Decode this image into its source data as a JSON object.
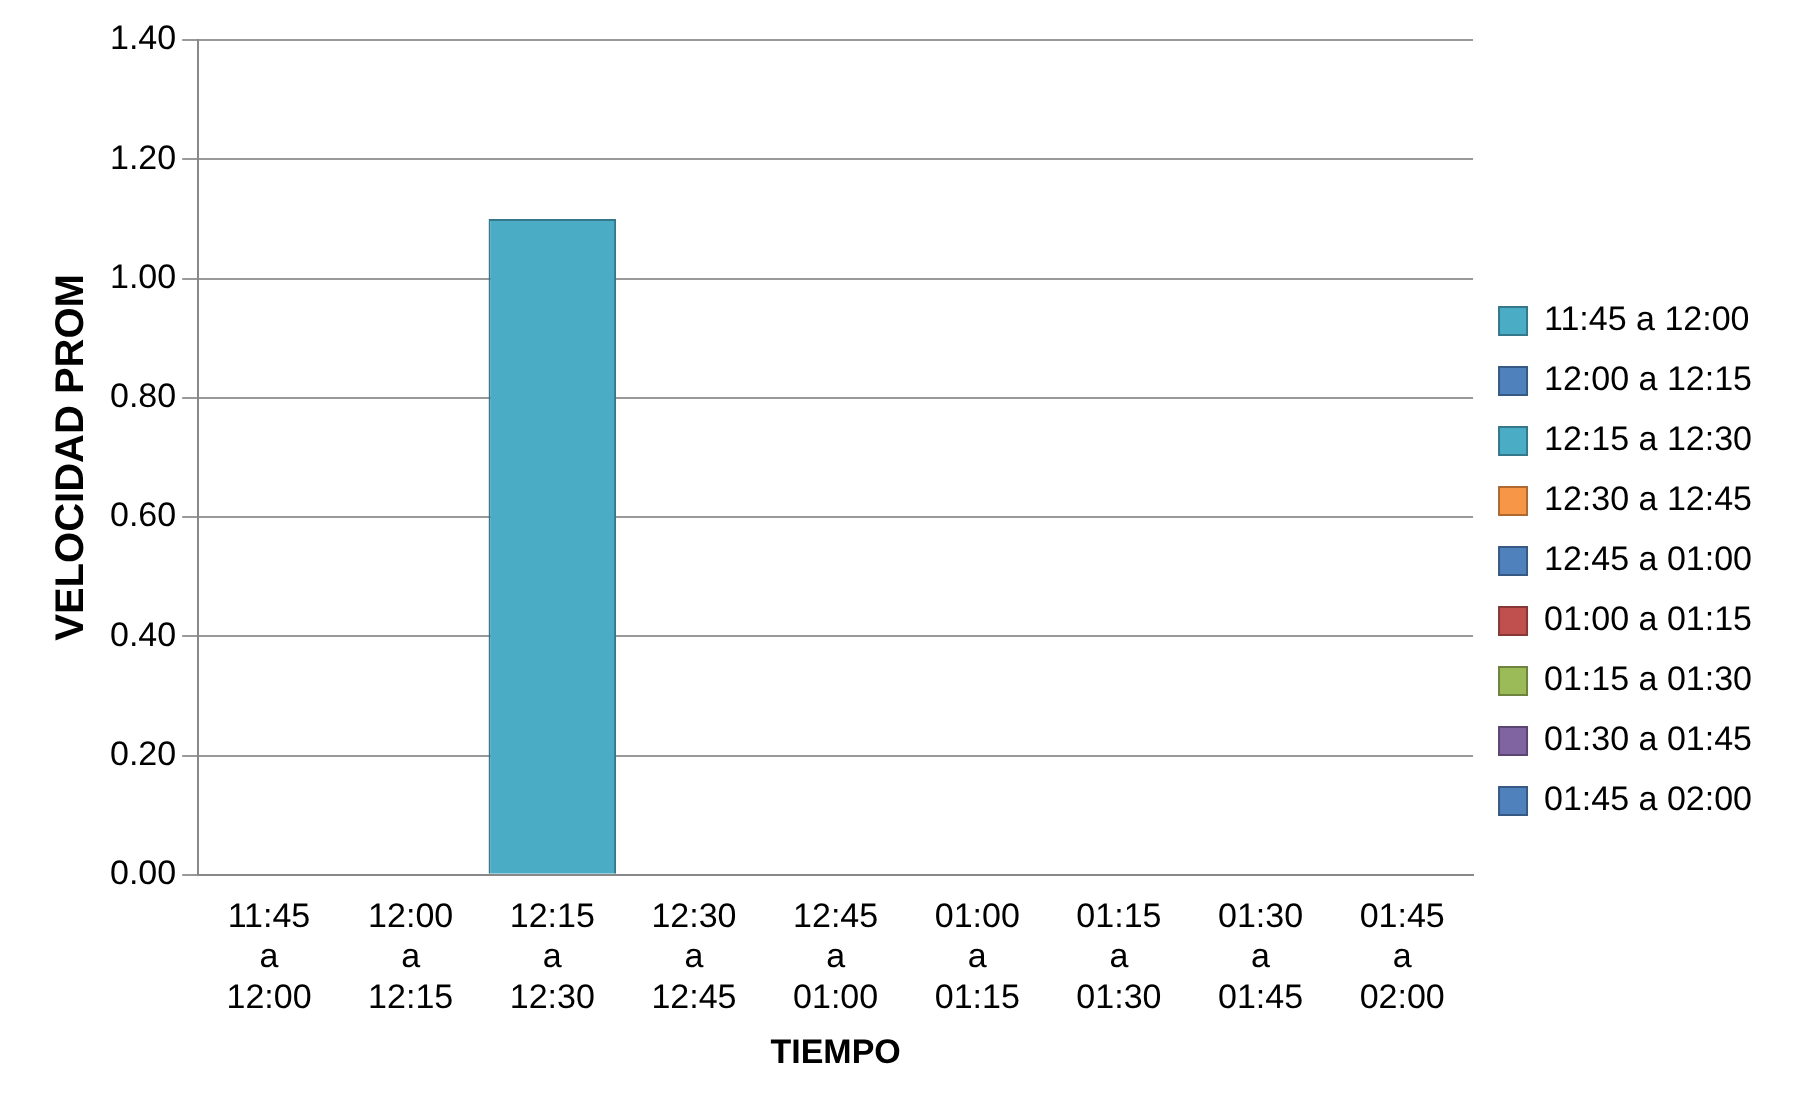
{
  "chart_data": {
    "type": "bar",
    "xlabel": "TIEMPO",
    "ylabel": "VELOCIDAD PROM",
    "categories": [
      "11:45 a 12:00",
      "12:00 a 12:15",
      "12:15 a 12:30",
      "12:30 a 12:45",
      "12:45 a 01:00",
      "01:00 a 01:15",
      "01:15 a 01:30",
      "01:30 a 01:45",
      "01:45 a 02:00"
    ],
    "series": [
      {
        "name": "11:45 a 12:00",
        "color": "#4bacc6",
        "values": [
          0,
          null,
          null,
          null,
          null,
          null,
          null,
          null,
          null
        ]
      },
      {
        "name": "12:00 a 12:15",
        "color": "#4f81bd",
        "values": [
          null,
          0,
          null,
          null,
          null,
          null,
          null,
          null,
          null
        ]
      },
      {
        "name": "12:15 a 12:30",
        "color": "#4bacc6",
        "values": [
          null,
          null,
          1.1,
          null,
          null,
          null,
          null,
          null,
          null
        ]
      },
      {
        "name": "12:30 a 12:45",
        "color": "#f79646",
        "values": [
          null,
          null,
          null,
          0,
          null,
          null,
          null,
          null,
          null
        ]
      },
      {
        "name": "12:45 a 01:00",
        "color": "#4f81bd",
        "values": [
          null,
          null,
          null,
          null,
          0,
          null,
          null,
          null,
          null
        ]
      },
      {
        "name": "01:00 a 01:15",
        "color": "#c0504d",
        "values": [
          null,
          null,
          null,
          null,
          null,
          0,
          null,
          null,
          null
        ]
      },
      {
        "name": "01:15 a 01:30",
        "color": "#9bbb59",
        "values": [
          null,
          null,
          null,
          null,
          null,
          null,
          0,
          null,
          null
        ]
      },
      {
        "name": "01:30 a 01:45",
        "color": "#8064a2",
        "values": [
          null,
          null,
          null,
          null,
          null,
          null,
          null,
          0,
          null
        ]
      },
      {
        "name": "01:45 a 02:00",
        "color": "#4f81bd",
        "values": [
          null,
          null,
          null,
          null,
          null,
          null,
          null,
          null,
          0
        ]
      }
    ],
    "ylim": [
      0,
      1.4
    ],
    "yticks": [
      {
        "value": 0,
        "label": "0.00"
      },
      {
        "value": 0.2,
        "label": "0.20"
      },
      {
        "value": 0.4,
        "label": "0.40"
      },
      {
        "value": 0.6,
        "label": "0.60"
      },
      {
        "value": 0.8,
        "label": "0.80"
      },
      {
        "value": 1,
        "label": "1.00"
      },
      {
        "value": 1.2,
        "label": "1.20"
      },
      {
        "value": 1.4,
        "label": "1.40"
      }
    ],
    "grid": "y",
    "legend": "right"
  }
}
